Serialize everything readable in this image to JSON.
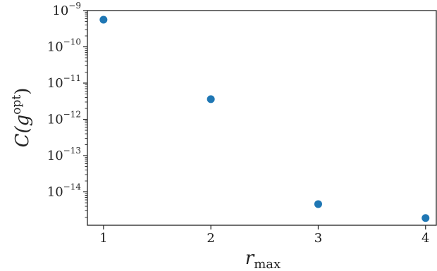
{
  "chart_data": {
    "type": "scatter",
    "xlabel": "r",
    "xlabel_sub": "max",
    "ylabel": "C(g",
    "ylabel_sup": "opt",
    "ylabel_close": ")",
    "y_scale": "log",
    "xlim": [
      0.85,
      4.1
    ],
    "ylim": [
      1.2e-15,
      1e-09
    ],
    "x_ticks": [
      1,
      2,
      3,
      4
    ],
    "y_ticks": [
      {
        "value": 1e-09,
        "base": "10",
        "exp": "−9"
      },
      {
        "value": 1e-10,
        "base": "10",
        "exp": "−10"
      },
      {
        "value": 1e-11,
        "base": "10",
        "exp": "−11"
      },
      {
        "value": 1e-12,
        "base": "10",
        "exp": "−12"
      },
      {
        "value": 1e-13,
        "base": "10",
        "exp": "−13"
      },
      {
        "value": 1e-14,
        "base": "10",
        "exp": "−14"
      }
    ],
    "series": [
      {
        "color": "#1f77b4",
        "x": [
          1,
          2,
          3,
          4
        ],
        "y": [
          5.6e-10,
          3.6e-12,
          4.6e-15,
          1.9e-15
        ]
      }
    ],
    "grid": false,
    "legend": "none"
  }
}
